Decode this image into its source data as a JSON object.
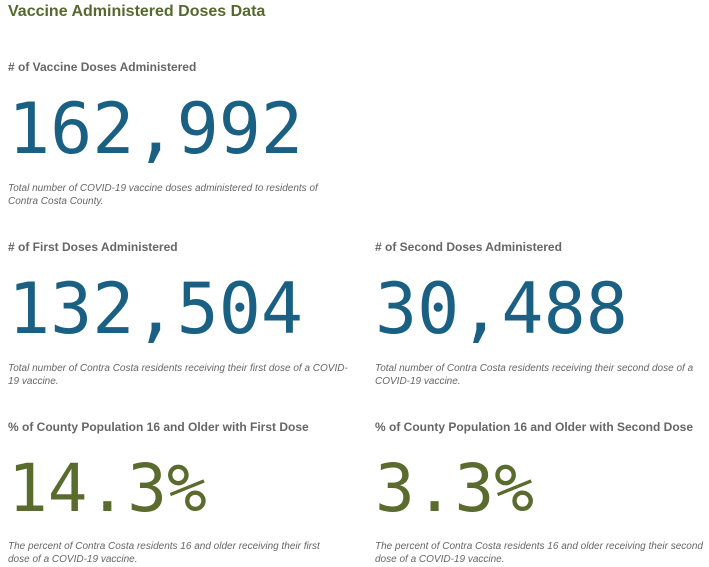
{
  "page": {
    "title": "Vaccine Administered Doses Data"
  },
  "metrics": {
    "total_doses": {
      "label": "# of Vaccine Doses Administered",
      "value": "162,992",
      "description": "Total number of COVID-19 vaccine doses administered to residents of Contra Costa County."
    },
    "first_doses": {
      "label": "# of First Doses Administered",
      "value": "132,504",
      "description": "Total number of Contra Costa residents receiving their first dose of a COVID-19 vaccine."
    },
    "second_doses": {
      "label": "# of Second Doses Administered",
      "value": "30,488",
      "description": "Total number of Contra Costa residents receiving their second dose of a COVID-19 vaccine."
    },
    "pct_first_dose": {
      "label": "% of County Population 16 and Older with First Dose",
      "value": "14.3%",
      "description": "The percent of Contra Costa residents 16 and older receiving their first dose of a COVID-19 vaccine."
    },
    "pct_second_dose": {
      "label": "% of County Population 16 and Older with Second Dose",
      "value": "3.3%",
      "description": "The percent of Contra Costa residents 16 and older receiving their second dose of a COVID-19 vaccine."
    }
  },
  "colors": {
    "title": "#55692d",
    "count_value": "#1a6083",
    "percent_value": "#5a6b2e",
    "label": "#666666"
  }
}
